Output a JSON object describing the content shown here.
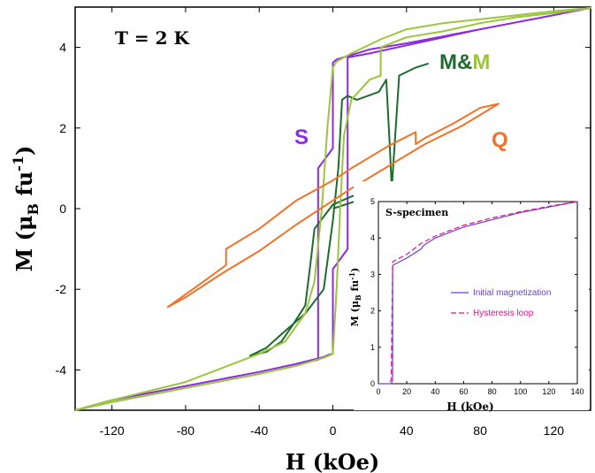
{
  "chart_data": [
    {
      "type": "line",
      "annotation": "T = 2 K",
      "xlabel": "H (kOe)",
      "ylabel_parts": [
        "M (",
        "μ",
        "B",
        " fu",
        "-1",
        ")"
      ],
      "xlim": [
        -140,
        140
      ],
      "ylim": [
        -5,
        5
      ],
      "xticks": [
        -120,
        -80,
        -40,
        0,
        40,
        80,
        120
      ],
      "yticks": [
        -4,
        -2,
        0,
        2,
        4
      ],
      "colors": {
        "S": "#8b2be2",
        "MM_dark": "#1e6b2e",
        "MM_light": "#9bc53d",
        "Q": "#f07328"
      },
      "labels": {
        "S": "S",
        "Q": "Q",
        "MM_first": "M",
        "MM_amp": "&",
        "MM_last": "M"
      },
      "series": [
        {
          "key": "S",
          "color": "#8b2be2",
          "points": [
            [
              -140,
              -5
            ],
            [
              -120,
              -4.75
            ],
            [
              -80,
              -4.4
            ],
            [
              -40,
              -4.05
            ],
            [
              -20,
              -3.85
            ],
            [
              -5,
              -3.68
            ],
            [
              -2,
              -3.62
            ],
            [
              0,
              -3.6
            ],
            [
              0,
              -1.5
            ],
            [
              8,
              -1.0
            ],
            [
              8,
              3.75
            ],
            [
              20,
              3.85
            ],
            [
              40,
              4.05
            ],
            [
              80,
              4.45
            ],
            [
              120,
              4.8
            ],
            [
              140,
              4.98
            ],
            [
              120,
              4.8
            ],
            [
              80,
              4.45
            ],
            [
              40,
              4.1
            ],
            [
              20,
              3.95
            ],
            [
              2,
              3.7
            ],
            [
              0,
              3.62
            ],
            [
              0,
              1.5
            ],
            [
              -8,
              1.0
            ],
            [
              -8,
              -3.75
            ],
            [
              -20,
              -3.85
            ],
            [
              -40,
              -4.05
            ],
            [
              -80,
              -4.4
            ],
            [
              -120,
              -4.75
            ],
            [
              -140,
              -5
            ]
          ]
        },
        {
          "key": "MM_dark",
          "color": "#1e6b2e",
          "points": [
            [
              0,
              0
            ],
            [
              20,
              0.3
            ],
            [
              26,
              0.45
            ],
            [
              30,
              0.6
            ],
            [
              26,
              0.55
            ],
            [
              20,
              0.45
            ],
            [
              10,
              0.3
            ],
            [
              0,
              0.1
            ],
            [
              -10,
              -0.5
            ],
            [
              -12,
              -1.3
            ],
            [
              -15,
              -2.4
            ],
            [
              -22,
              -2.9
            ],
            [
              -28,
              -3.3
            ],
            [
              -36,
              -3.55
            ],
            [
              -45,
              -3.65
            ],
            [
              -36,
              -3.45
            ],
            [
              -30,
              -3.2
            ],
            [
              -25,
              -3.0
            ],
            [
              -15,
              -2.6
            ],
            [
              -5,
              -2.0
            ],
            [
              0,
              -0.3
            ],
            [
              3,
              1.0
            ],
            [
              5,
              2.7
            ],
            [
              8,
              2.8
            ],
            [
              13,
              2.7
            ],
            [
              25,
              2.9
            ],
            [
              29,
              3.2
            ],
            [
              31,
              1.5
            ],
            [
              32,
              0.5
            ],
            [
              36,
              3.3
            ],
            [
              45,
              3.5
            ],
            [
              52,
              3.6
            ]
          ]
        },
        {
          "key": "MM_light",
          "color": "#9bc53d",
          "points": [
            [
              -140,
              -5
            ],
            [
              -120,
              -4.8
            ],
            [
              -80,
              -4.45
            ],
            [
              -40,
              -4.1
            ],
            [
              -20,
              -3.9
            ],
            [
              -5,
              -3.7
            ],
            [
              0,
              -3.6
            ],
            [
              2,
              -2.0
            ],
            [
              4,
              0.0
            ],
            [
              6,
              1.8
            ],
            [
              10,
              2.7
            ],
            [
              20,
              3.2
            ],
            [
              26,
              3.3
            ],
            [
              26,
              4.0
            ],
            [
              40,
              4.25
            ],
            [
              60,
              4.4
            ],
            [
              80,
              4.6
            ],
            [
              100,
              4.75
            ],
            [
              120,
              4.85
            ],
            [
              140,
              4.98
            ],
            [
              120,
              4.9
            ],
            [
              80,
              4.7
            ],
            [
              60,
              4.6
            ],
            [
              40,
              4.45
            ],
            [
              26,
              4.2
            ],
            [
              10,
              3.85
            ],
            [
              2,
              3.65
            ],
            [
              0,
              3.5
            ],
            [
              -3,
              2.0
            ],
            [
              -6,
              0.0
            ],
            [
              -10,
              -1.8
            ],
            [
              -15,
              -2.6
            ],
            [
              -26,
              -3.3
            ],
            [
              -40,
              -3.6
            ],
            [
              -80,
              -4.3
            ],
            [
              -120,
              -4.75
            ],
            [
              -140,
              -5
            ]
          ]
        },
        {
          "key": "Q",
          "color": "#f07328",
          "points": [
            [
              -90,
              -2.45
            ],
            [
              -80,
              -2.2
            ],
            [
              -60,
              -1.6
            ],
            [
              -40,
              -1.05
            ],
            [
              -20,
              -0.4
            ],
            [
              -5,
              0.05
            ],
            [
              10,
              0.5
            ],
            [
              30,
              1.05
            ],
            [
              50,
              1.6
            ],
            [
              70,
              2.05
            ],
            [
              90,
              2.6
            ],
            [
              80,
              2.5
            ],
            [
              65,
              2.1
            ],
            [
              50,
              1.75
            ],
            [
              45,
              1.6
            ],
            [
              45,
              1.9
            ],
            [
              30,
              1.55
            ],
            [
              10,
              1.0
            ],
            [
              0,
              0.7
            ],
            [
              -20,
              0.2
            ],
            [
              -40,
              -0.5
            ],
            [
              -58,
              -1.0
            ],
            [
              -58,
              -1.4
            ],
            [
              -70,
              -1.8
            ],
            [
              -90,
              -2.45
            ]
          ]
        }
      ]
    },
    {
      "type": "line",
      "title": "S-specimen",
      "xlabel": "H (kOe)",
      "ylabel_parts": [
        "M (",
        "μ",
        "B",
        " fu",
        "-1",
        ")"
      ],
      "xlim": [
        0,
        140
      ],
      "ylim": [
        0,
        5
      ],
      "xticks": [
        0,
        20,
        40,
        60,
        80,
        100,
        120,
        140
      ],
      "yticks": [
        0,
        1,
        2,
        3,
        4,
        5
      ],
      "legend_position": "center-right",
      "series": [
        {
          "name": "Initial magnetization",
          "color": "#6a3fd8",
          "dash": "",
          "points": [
            [
              0,
              0
            ],
            [
              9,
              0
            ],
            [
              10,
              0.1
            ],
            [
              10,
              3.25
            ],
            [
              20,
              3.45
            ],
            [
              30,
              3.7
            ],
            [
              31,
              3.75
            ],
            [
              32,
              3.8
            ],
            [
              40,
              4.0
            ],
            [
              60,
              4.3
            ],
            [
              80,
              4.5
            ],
            [
              100,
              4.7
            ],
            [
              120,
              4.85
            ],
            [
              140,
              5.0
            ]
          ]
        },
        {
          "name": "Hysteresis loop",
          "color": "#e0148a",
          "dash": "6,3",
          "points": [
            [
              8,
              0.05
            ],
            [
              9,
              0.1
            ],
            [
              10,
              3.35
            ],
            [
              20,
              3.55
            ],
            [
              30,
              3.85
            ],
            [
              40,
              4.05
            ],
            [
              60,
              4.35
            ],
            [
              80,
              4.55
            ],
            [
              100,
              4.72
            ],
            [
              120,
              4.87
            ],
            [
              140,
              5.0
            ]
          ]
        }
      ]
    }
  ]
}
